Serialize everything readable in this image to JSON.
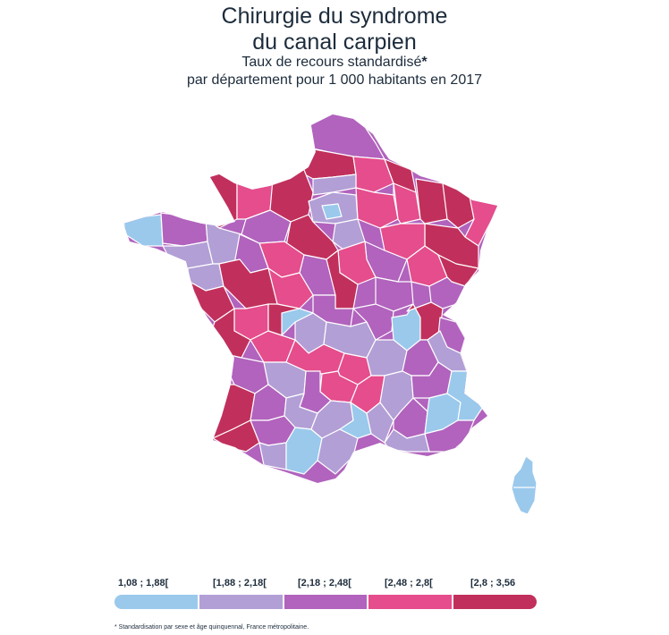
{
  "title_line1": "Chirurgie du syndrome",
  "title_line2": "du canal carpien",
  "subtitle_line1": "Taux de recours standardisé",
  "subtitle_star": "*",
  "subtitle_line2": "par département pour 1 000 habitants en 2017",
  "legend": [
    {
      "label": "1,08 ; 1,88[",
      "color": "#9ac9ec"
    },
    {
      "label": "[1,88 ; 2,18[",
      "color": "#b29fd6"
    },
    {
      "label": "[2,18 ; 2,48[",
      "color": "#b163bd"
    },
    {
      "label": "[2,48 ; 2,8[",
      "color": "#e54d8c"
    },
    {
      "label": "[2,8 ; 3,56",
      "color": "#c1305c"
    }
  ],
  "footnote": "* Standardisation par sexe et âge quinquennal, France métropolitaine.",
  "map_colors": {
    "c1": "#9ac9ec",
    "c2": "#b29fd6",
    "c3": "#b163bd",
    "c4": "#e54d8c",
    "c5": "#c1305c",
    "border": "#ffffff"
  }
}
